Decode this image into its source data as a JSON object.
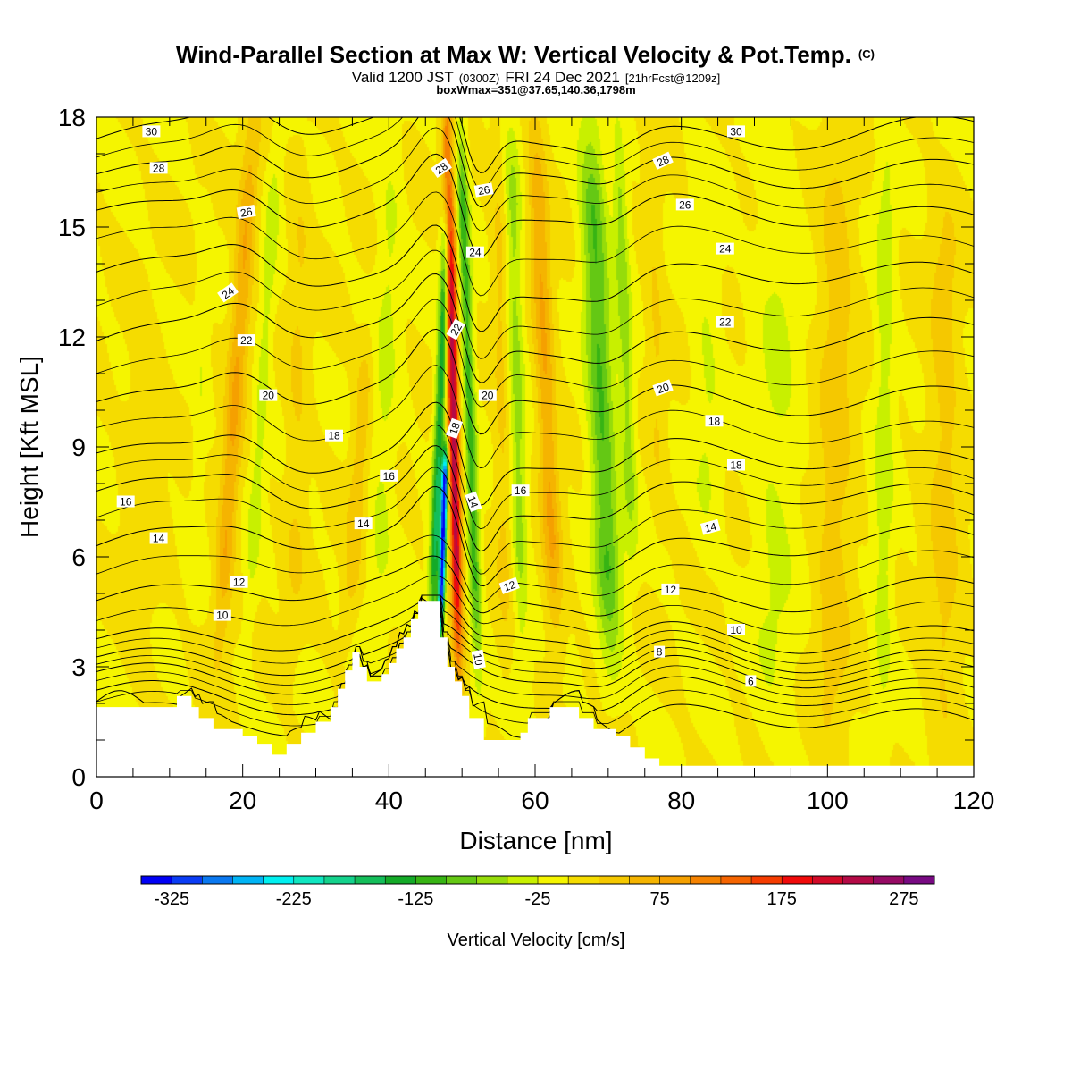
{
  "header": {
    "title_main": "Wind-Parallel Section at Max W: Vertical Velocity & Pot.Temp.",
    "title_mark": "(C)",
    "subtitle_a": "Valid 1200 JST",
    "subtitle_b": "(0300Z)",
    "subtitle_c": "FRI 24 Dec 2021",
    "subtitle_d": "[21hrFcst@1209z]",
    "subtitle_line3": "boxWmax=351@37.65,140.36,1798m"
  },
  "chart_data": {
    "type": "heatmap",
    "xlabel": "Distance [nm]",
    "ylabel": "Height [Kft MSL]",
    "xlim": [
      0,
      120
    ],
    "ylim": [
      0,
      18
    ],
    "x_ticks": [
      0,
      20,
      40,
      60,
      80,
      100,
      120
    ],
    "y_ticks": [
      0,
      3,
      6,
      9,
      12,
      15,
      18
    ],
    "x_tick_labels": [
      "0",
      "20",
      "40",
      "60",
      "80",
      "100",
      "120"
    ],
    "y_tick_labels": [
      "0",
      "3",
      "6",
      "9",
      "12",
      "15",
      "18"
    ],
    "colorbar": {
      "label": "Vertical Velocity [cm/s]",
      "min": -350,
      "max": 300,
      "step": 25,
      "tick_values": [
        -325,
        -225,
        -125,
        -25,
        75,
        175,
        275
      ],
      "tick_labels": [
        "-325",
        "-225",
        "-125",
        "-25",
        "75",
        "175",
        "275"
      ],
      "colors": [
        "#0000f5",
        "#0a3cf5",
        "#0a78f0",
        "#00b4f5",
        "#00f0f0",
        "#10e6c0",
        "#14d28c",
        "#14be5a",
        "#14aa28",
        "#37b414",
        "#64c814",
        "#96dc0a",
        "#c8f000",
        "#f5f500",
        "#f5dc00",
        "#f5c800",
        "#f5b400",
        "#f5a000",
        "#f58200",
        "#f56400",
        "#f53c00",
        "#f00a0a",
        "#d20a28",
        "#b40a46",
        "#960a64",
        "#780a82"
      ]
    },
    "w_features": [
      {
        "x": 16.8,
        "z0": 3.5,
        "z1": 17.8,
        "lean": 4.6,
        "w": 1.3,
        "amp": 75
      },
      {
        "x": 20.8,
        "z0": 4.0,
        "z1": 17.8,
        "lean": 4.0,
        "w": 1.0,
        "amp": -35
      },
      {
        "x": 13.5,
        "z0": 5.0,
        "z1": 15.5,
        "lean": 1.5,
        "w": 0.9,
        "amp": -20
      },
      {
        "x": 38.5,
        "z0": 4.0,
        "z1": 17.5,
        "lean": 2.0,
        "w": 1.6,
        "amp": -30
      },
      {
        "x": 34.5,
        "z0": 4.0,
        "z1": 12.0,
        "lean": 2.5,
        "w": 1.2,
        "amp": 40
      },
      {
        "x": 45.8,
        "z0": 3.6,
        "z1": 16.8,
        "lean": 2.5,
        "w": 0.7,
        "amp": -150
      },
      {
        "x": 47.0,
        "z0": 3.8,
        "z1": 9.0,
        "lean": 0.8,
        "w": 0.45,
        "amp": -330
      },
      {
        "x": 49.5,
        "z0": 3.2,
        "z1": 18.0,
        "lean": -1.5,
        "w": 0.75,
        "amp": 245
      },
      {
        "x": 52.2,
        "z0": 2.8,
        "z1": 17.8,
        "lean": -2.4,
        "w": 0.8,
        "amp": -110
      },
      {
        "x": 56.0,
        "z0": 3.0,
        "z1": 17.5,
        "lean": -1.0,
        "w": 1.2,
        "amp": 30
      },
      {
        "x": 58.2,
        "z0": 3.5,
        "z1": 17.8,
        "lean": -1.5,
        "w": 1.1,
        "amp": -60
      },
      {
        "x": 62.8,
        "z0": 3.8,
        "z1": 17.9,
        "lean": -2.8,
        "w": 1.3,
        "amp": 75
      },
      {
        "x": 70.5,
        "z0": 3.0,
        "z1": 17.8,
        "lean": -3.0,
        "w": 1.8,
        "amp": -100
      },
      {
        "x": 73.3,
        "z0": 6.0,
        "z1": 17.8,
        "lean": -2.0,
        "w": 1.0,
        "amp": -60
      },
      {
        "x": 77.0,
        "z0": 7.0,
        "z1": 17.5,
        "lean": -1.0,
        "w": 1.2,
        "amp": 25
      },
      {
        "x": 83.5,
        "z0": 6.0,
        "z1": 16.0,
        "lean": 0.0,
        "w": 2.0,
        "amp": -25
      },
      {
        "x": 92.5,
        "z0": 1.0,
        "z1": 17.0,
        "lean": 1.0,
        "w": 3.0,
        "amp": -28
      },
      {
        "x": 100.5,
        "z0": 0.5,
        "z1": 17.5,
        "lean": 1.0,
        "w": 2.4,
        "amp": 40
      },
      {
        "x": 107.5,
        "z0": 1.5,
        "z1": 17.5,
        "lean": 0.5,
        "w": 1.3,
        "amp": -40
      },
      {
        "x": 116.0,
        "z0": 1.0,
        "z1": 16.0,
        "lean": 0.0,
        "w": 2.2,
        "amp": 35
      },
      {
        "x": 6.0,
        "z0": 3.0,
        "z1": 12.0,
        "lean": 0.5,
        "w": 2.5,
        "amp": 15
      },
      {
        "x": 27.0,
        "z0": 3.5,
        "z1": 17.0,
        "lean": 1.0,
        "w": 1.5,
        "amp": 25
      }
    ],
    "terrain": [
      [
        0,
        1.9
      ],
      [
        11,
        1.9
      ],
      [
        11,
        2.2
      ],
      [
        13,
        2.2
      ],
      [
        13,
        1.9
      ],
      [
        14,
        1.9
      ],
      [
        14,
        1.6
      ],
      [
        16,
        1.6
      ],
      [
        16,
        1.3
      ],
      [
        20,
        1.3
      ],
      [
        20,
        1.1
      ],
      [
        22,
        1.1
      ],
      [
        22,
        0.9
      ],
      [
        24,
        0.9
      ],
      [
        24,
        0.6
      ],
      [
        26,
        0.6
      ],
      [
        26,
        0.9
      ],
      [
        28,
        0.9
      ],
      [
        28,
        1.2
      ],
      [
        30,
        1.2
      ],
      [
        30,
        1.5
      ],
      [
        32,
        1.5
      ],
      [
        32,
        1.9
      ],
      [
        33,
        1.9
      ],
      [
        33,
        2.4
      ],
      [
        34,
        2.4
      ],
      [
        34,
        2.9
      ],
      [
        35,
        2.9
      ],
      [
        35,
        3.4
      ],
      [
        36,
        3.4
      ],
      [
        36,
        3.0
      ],
      [
        37,
        3.0
      ],
      [
        37,
        2.6
      ],
      [
        39,
        2.6
      ],
      [
        39,
        2.8
      ],
      [
        40,
        2.8
      ],
      [
        40,
        3.1
      ],
      [
        41,
        3.1
      ],
      [
        41,
        3.5
      ],
      [
        42,
        3.5
      ],
      [
        42,
        3.8
      ],
      [
        43,
        3.8
      ],
      [
        43,
        4.3
      ],
      [
        44,
        4.3
      ],
      [
        44,
        4.8
      ],
      [
        47,
        4.8
      ],
      [
        47,
        3.8
      ],
      [
        48,
        3.8
      ],
      [
        48,
        3.0
      ],
      [
        49,
        3.0
      ],
      [
        49,
        2.6
      ],
      [
        50,
        2.6
      ],
      [
        50,
        2.2
      ],
      [
        51,
        2.2
      ],
      [
        51,
        1.6
      ],
      [
        53,
        1.6
      ],
      [
        53,
        1.0
      ],
      [
        58,
        1.0
      ],
      [
        58,
        1.2
      ],
      [
        59,
        1.2
      ],
      [
        59,
        1.6
      ],
      [
        62,
        1.6
      ],
      [
        62,
        1.9
      ],
      [
        66,
        1.9
      ],
      [
        66,
        1.6
      ],
      [
        68,
        1.6
      ],
      [
        68,
        1.3
      ],
      [
        71,
        1.3
      ],
      [
        71,
        1.1
      ],
      [
        73,
        1.1
      ],
      [
        73,
        0.8
      ],
      [
        75,
        0.8
      ],
      [
        75,
        0.5
      ],
      [
        77,
        0.5
      ],
      [
        77,
        0.3
      ],
      [
        120,
        0.3
      ]
    ],
    "theta_contours": [
      {
        "v": 2,
        "base": 1.5
      },
      {
        "v": 4,
        "base": 2.2
      },
      {
        "v": 6,
        "base": 2.8
      },
      {
        "v": 8,
        "base": 3.3
      },
      {
        "v": 10,
        "base": 3.9
      },
      {
        "v": 12,
        "base": 5.0
      },
      {
        "v": 14,
        "base": 6.3
      },
      {
        "v": 16,
        "base": 7.6
      },
      {
        "v": 18,
        "base": 8.7
      },
      {
        "v": 20,
        "base": 10.4
      },
      {
        "v": 22,
        "base": 12.0
      },
      {
        "v": 24,
        "base": 13.6
      },
      {
        "v": 26,
        "base": 15.4
      },
      {
        "v": 28,
        "base": 16.6
      },
      {
        "v": 30,
        "base": 17.6
      }
    ],
    "contour_labels": [
      {
        "text": "30",
        "x": 7.5,
        "z": 17.6,
        "rot": 0
      },
      {
        "text": "28",
        "x": 8.5,
        "z": 16.6,
        "rot": 0
      },
      {
        "text": "26",
        "x": 20.5,
        "z": 15.4,
        "rot": -10
      },
      {
        "text": "24",
        "x": 18.0,
        "z": 13.2,
        "rot": -35
      },
      {
        "text": "22",
        "x": 20.5,
        "z": 11.9,
        "rot": 0
      },
      {
        "text": "20",
        "x": 23.5,
        "z": 10.4,
        "rot": 0
      },
      {
        "text": "18",
        "x": 32.5,
        "z": 9.3,
        "rot": 0
      },
      {
        "text": "16",
        "x": 40.0,
        "z": 8.2,
        "rot": 0
      },
      {
        "text": "16",
        "x": 4.0,
        "z": 7.5,
        "rot": 0
      },
      {
        "text": "14",
        "x": 8.5,
        "z": 6.5,
        "rot": 0
      },
      {
        "text": "14",
        "x": 36.5,
        "z": 6.9,
        "rot": 0
      },
      {
        "text": "12",
        "x": 19.5,
        "z": 5.3,
        "rot": 0
      },
      {
        "text": "10",
        "x": 17.2,
        "z": 4.4,
        "rot": 0
      },
      {
        "text": "28",
        "x": 47.2,
        "z": 16.6,
        "rot": -35
      },
      {
        "text": "26",
        "x": 53.0,
        "z": 16.0,
        "rot": -10
      },
      {
        "text": "24",
        "x": 51.8,
        "z": 14.3,
        "rot": 0
      },
      {
        "text": "22",
        "x": 49.2,
        "z": 12.2,
        "rot": -60
      },
      {
        "text": "20",
        "x": 53.5,
        "z": 10.4,
        "rot": 0
      },
      {
        "text": "18",
        "x": 49.0,
        "z": 9.5,
        "rot": -70
      },
      {
        "text": "16",
        "x": 58.0,
        "z": 7.8,
        "rot": 0
      },
      {
        "text": "14",
        "x": 51.5,
        "z": 7.5,
        "rot": 70
      },
      {
        "text": "12",
        "x": 56.5,
        "z": 5.2,
        "rot": -20
      },
      {
        "text": "10",
        "x": 52.2,
        "z": 3.2,
        "rot": 80
      },
      {
        "text": "30",
        "x": 87.5,
        "z": 17.6,
        "rot": 0
      },
      {
        "text": "28",
        "x": 77.5,
        "z": 16.8,
        "rot": -25
      },
      {
        "text": "26",
        "x": 80.5,
        "z": 15.6,
        "rot": 0
      },
      {
        "text": "24",
        "x": 86.0,
        "z": 14.4,
        "rot": 0
      },
      {
        "text": "22",
        "x": 86.0,
        "z": 12.4,
        "rot": 0
      },
      {
        "text": "20",
        "x": 77.5,
        "z": 10.6,
        "rot": -20
      },
      {
        "text": "18",
        "x": 84.5,
        "z": 9.7,
        "rot": 0
      },
      {
        "text": "18",
        "x": 87.5,
        "z": 8.5,
        "rot": 0
      },
      {
        "text": "14",
        "x": 84.0,
        "z": 6.8,
        "rot": -15
      },
      {
        "text": "12",
        "x": 78.5,
        "z": 5.1,
        "rot": 0
      },
      {
        "text": "10",
        "x": 87.5,
        "z": 4.0,
        "rot": 0
      },
      {
        "text": "8",
        "x": 77.0,
        "z": 3.4,
        "rot": 0
      },
      {
        "text": "6",
        "x": 89.5,
        "z": 2.6,
        "rot": 0
      }
    ]
  }
}
